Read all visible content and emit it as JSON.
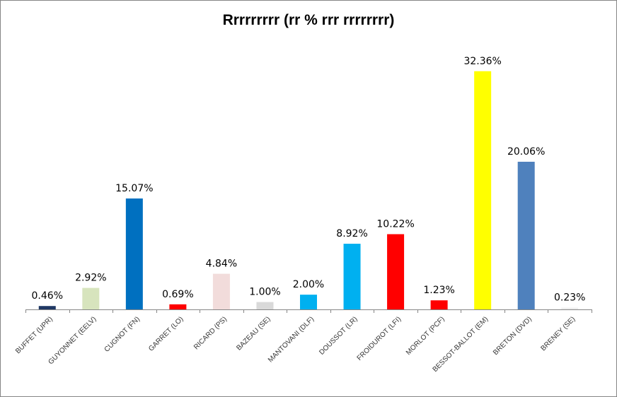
{
  "chart_data": {
    "type": "bar",
    "title": "Rrrrrrrrr (rr % rrr rrrrrrrr)",
    "xlabel": "",
    "ylabel": "",
    "ylim": [
      0,
      34
    ],
    "grid": false,
    "legend": "none",
    "categories": [
      "BUFFET (UPR)",
      "GUYONNET (EELV)",
      "CUGNOT (FN)",
      "GARRET (LO)",
      "RICARD (PS)",
      "BAZEAU (SE)",
      "MANTOVANI (DLF)",
      "DOUSSOT (LR)",
      "FROIDUROT (LFI)",
      "MORLOT (PCF)",
      "BESSOT-BALLOT (EM)",
      "BRETON (DVD)",
      "BRENEY (SE)"
    ],
    "values": [
      0.46,
      2.92,
      15.07,
      0.69,
      4.84,
      1.0,
      2.0,
      8.92,
      10.22,
      1.23,
      32.36,
      20.06,
      0.23
    ],
    "data_labels": [
      "0.46%",
      "2.92%",
      "15.07%",
      "0.69%",
      "4.84%",
      "1.00%",
      "2.00%",
      "8.92%",
      "10.22%",
      "1.23%",
      "32.36%",
      "20.06%",
      "0.23%"
    ],
    "colors": [
      "#1F3864",
      "#D7E4BD",
      "#0070C0",
      "#FF0000",
      "#F2DCDB",
      "#D9D9D9",
      "#00B0F0",
      "#00B0F0",
      "#FF0000",
      "#FF0000",
      "#FFFF00",
      "#4F81BD",
      "#EEEEEE"
    ]
  }
}
